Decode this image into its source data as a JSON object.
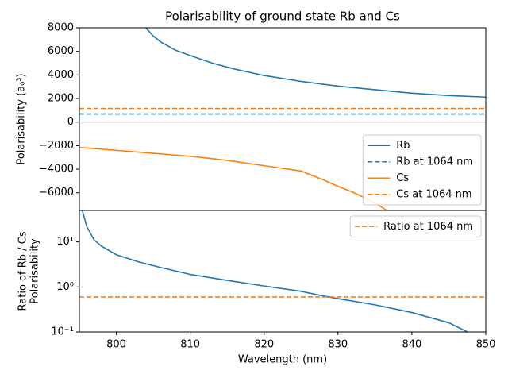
{
  "chart_data": [
    {
      "type": "line",
      "title": "Polarisability of ground state Rb and Cs",
      "ylabel": "Polarisability (a₀³)",
      "xlim": [
        795,
        850
      ],
      "ylim": [
        -7500,
        8000
      ],
      "yticks": [
        {
          "value": -6000,
          "label": "−6000"
        },
        {
          "value": -4000,
          "label": "−4000"
        },
        {
          "value": -2000,
          "label": "−2000"
        },
        0,
        2000,
        4000,
        6000,
        8000
      ],
      "hline": {
        "value": 0,
        "color": "#d3dbe4"
      },
      "legend": "lower right",
      "series": [
        {
          "name": "Rb",
          "color": "#1f77b4",
          "dashed": false,
          "x": [
            804,
            805,
            806,
            808,
            810,
            813,
            816,
            820,
            825,
            830,
            835,
            840,
            845,
            850
          ],
          "values": [
            8000,
            7300,
            6800,
            6100,
            5650,
            5000,
            4500,
            3950,
            3450,
            3050,
            2750,
            2450,
            2250,
            2120
          ]
        },
        {
          "name": "Rb at 1064 nm",
          "color": "#1f77b4",
          "dashed": true,
          "x": [
            795,
            850
          ],
          "values": [
            687,
            687
          ]
        },
        {
          "name": "Cs",
          "color": "#ff7f0e",
          "dashed": false,
          "x": [
            795,
            800,
            805,
            810,
            815,
            820,
            825,
            828,
            830,
            832,
            834,
            836,
            836.6
          ],
          "values": [
            -2150,
            -2400,
            -2650,
            -2900,
            -3250,
            -3700,
            -4150,
            -4900,
            -5450,
            -5950,
            -6550,
            -7250,
            -7500
          ]
        },
        {
          "name": "Cs at 1064 nm",
          "color": "#ff7f0e",
          "dashed": true,
          "x": [
            795,
            850
          ],
          "values": [
            1160,
            1160
          ]
        }
      ]
    },
    {
      "type": "line",
      "log_scale": true,
      "xlabel": "Wavelength (nm)",
      "ylabel": [
        "Ratio of Rb / Cs",
        "Polarisability"
      ],
      "xlim": [
        795,
        850
      ],
      "xticks": [
        800,
        810,
        820,
        830,
        840,
        850
      ],
      "ylim": [
        0.1,
        50
      ],
      "yticks": [
        {
          "value": 0.1,
          "label": "10⁻¹"
        },
        {
          "value": 1,
          "label": "10⁰"
        },
        {
          "value": 10,
          "label": "10¹"
        }
      ],
      "legend": "upper right",
      "series": [
        {
          "color": "#1f77b4",
          "dashed": false,
          "x": [
            795.4,
            796,
            797,
            798,
            800,
            803,
            806,
            810,
            815,
            820,
            825,
            828,
            830,
            835,
            840,
            845,
            847.5
          ],
          "values": [
            50,
            22,
            11,
            8,
            5.2,
            3.6,
            2.7,
            1.9,
            1.4,
            1.05,
            0.8,
            0.63,
            0.55,
            0.4,
            0.27,
            0.16,
            0.1
          ]
        },
        {
          "name": "Ratio at 1064 nm",
          "color": "#ff7f0e",
          "dashed": true,
          "x": [
            795,
            850
          ],
          "values": [
            0.6,
            0.6
          ]
        }
      ]
    }
  ]
}
